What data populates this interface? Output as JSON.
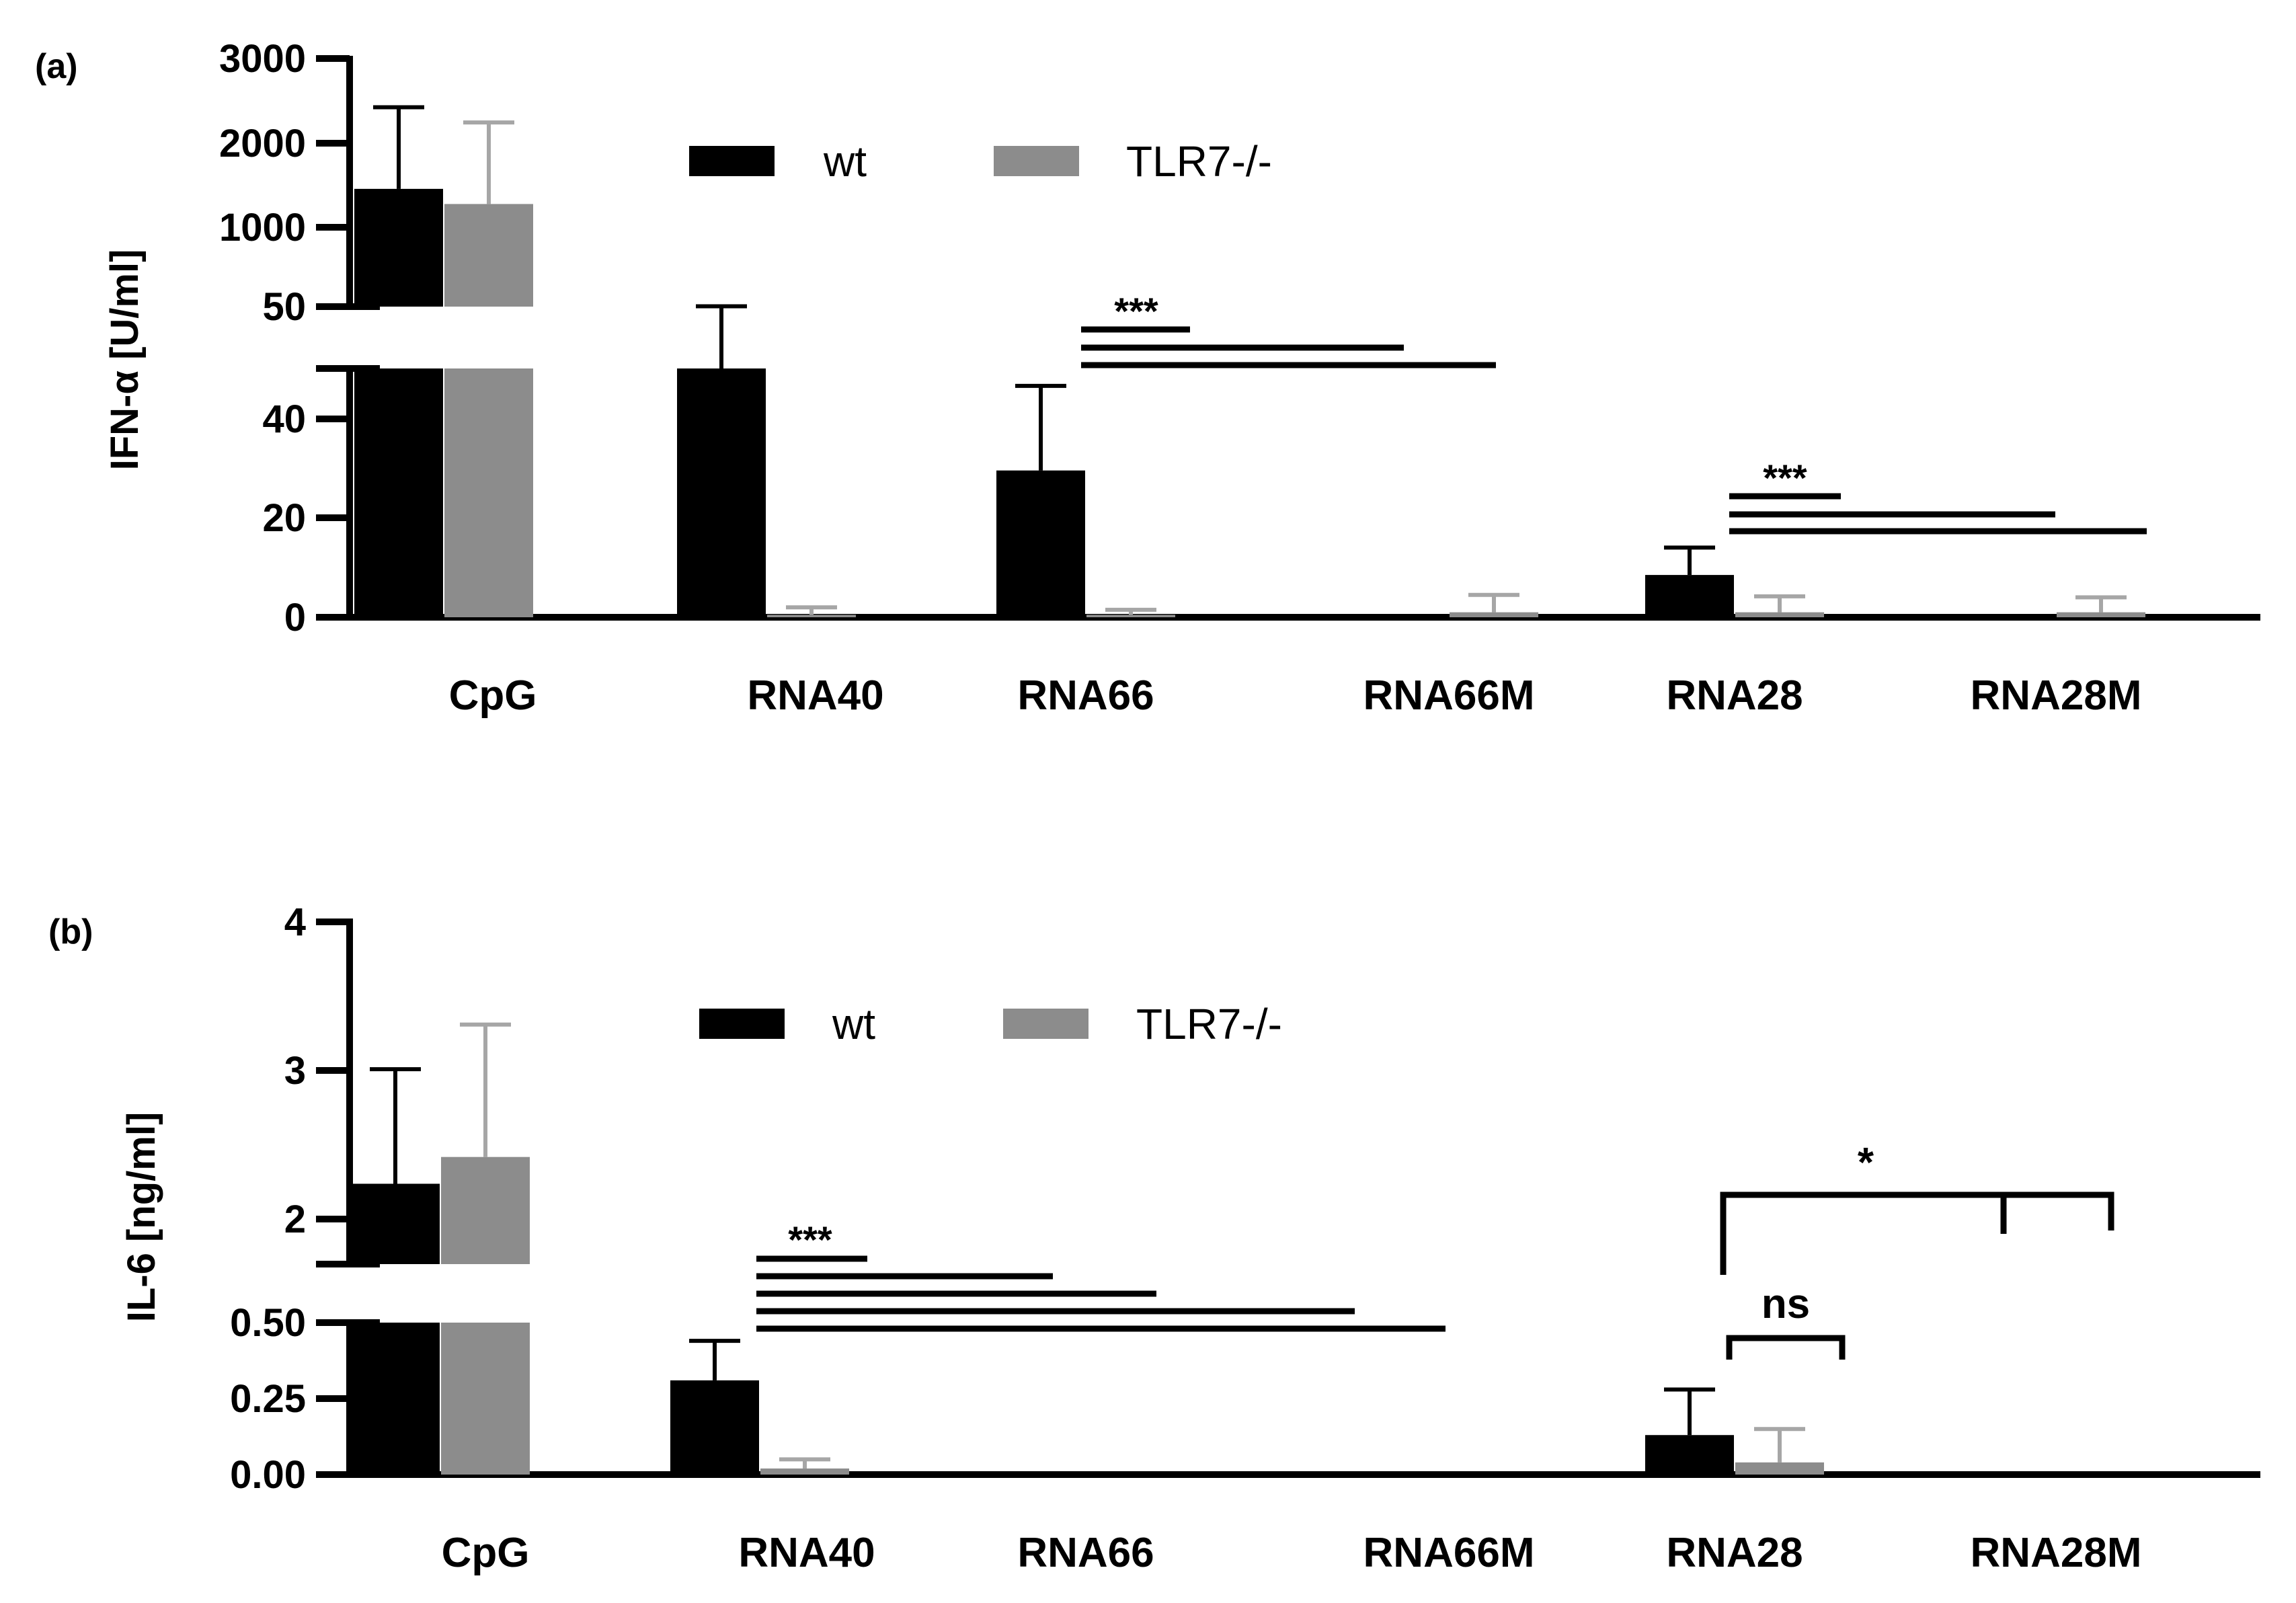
{
  "colors": {
    "wt": "#000000",
    "tlr7": "#8c8c8c",
    "tlr7_error": "#a6a6a6",
    "axis": "#000000",
    "background": "#ffffff"
  },
  "chart_data": [
    {
      "type": "bar",
      "panel_label": "(a)",
      "title": "",
      "ylabel": "IFN-α [U/ml]",
      "xlabel": "",
      "y_axis_broken": true,
      "y_lower_range": [
        0,
        50
      ],
      "y_lower_ticks": [
        "0",
        "20",
        "40"
      ],
      "y_upper_range": [
        50,
        3000
      ],
      "y_upper_ticks": [
        "50",
        "1000",
        "2000",
        "3000"
      ],
      "categories": [
        "CpG",
        "RNA40",
        "RNA66",
        "RNA66M",
        "RNA28",
        "RNA28M"
      ],
      "series": [
        {
          "name": "wt",
          "values": [
            1450,
            50,
            29.5,
            0,
            8.5,
            0
          ],
          "errors": [
            970,
            4,
            17,
            0,
            5.5,
            0
          ]
        },
        {
          "name": "TLR7-/-",
          "values": [
            1270,
            0.5,
            0.5,
            1,
            1,
            1
          ],
          "errors": [
            970,
            1.5,
            1,
            3.5,
            3.2,
            3
          ]
        }
      ],
      "legend": {
        "position": "top-center",
        "entries": [
          "wt",
          "TLR7-/-"
        ]
      },
      "annotations": [
        "***",
        "***"
      ]
    },
    {
      "type": "bar",
      "panel_label": "(b)",
      "title": "",
      "ylabel": "IL-6 [ng/ml]",
      "xlabel": "",
      "y_axis_broken": true,
      "y_lower_range": [
        0,
        0.5
      ],
      "y_lower_ticks": [
        "0.00",
        "0.25",
        "0.50"
      ],
      "y_upper_range": [
        1.7,
        4
      ],
      "y_upper_ticks": [
        "2",
        "3",
        "4"
      ],
      "categories": [
        "CpG",
        "RNA40",
        "RNA66",
        "RNA66M",
        "RNA28",
        "RNA28M"
      ],
      "series": [
        {
          "name": "wt",
          "values": [
            2.24,
            0.31,
            0,
            0,
            0.13,
            0
          ],
          "errors": [
            0.77,
            0.13,
            0,
            0,
            0.15,
            0
          ]
        },
        {
          "name": "TLR7-/-",
          "values": [
            2.42,
            0.02,
            0,
            0,
            0.04,
            0
          ],
          "errors": [
            0.89,
            0.03,
            0,
            0,
            0.11,
            0
          ]
        }
      ],
      "legend": {
        "position": "top-center",
        "entries": [
          "wt",
          "TLR7-/-"
        ]
      },
      "annotations": [
        "***",
        "ns",
        "*"
      ]
    }
  ]
}
